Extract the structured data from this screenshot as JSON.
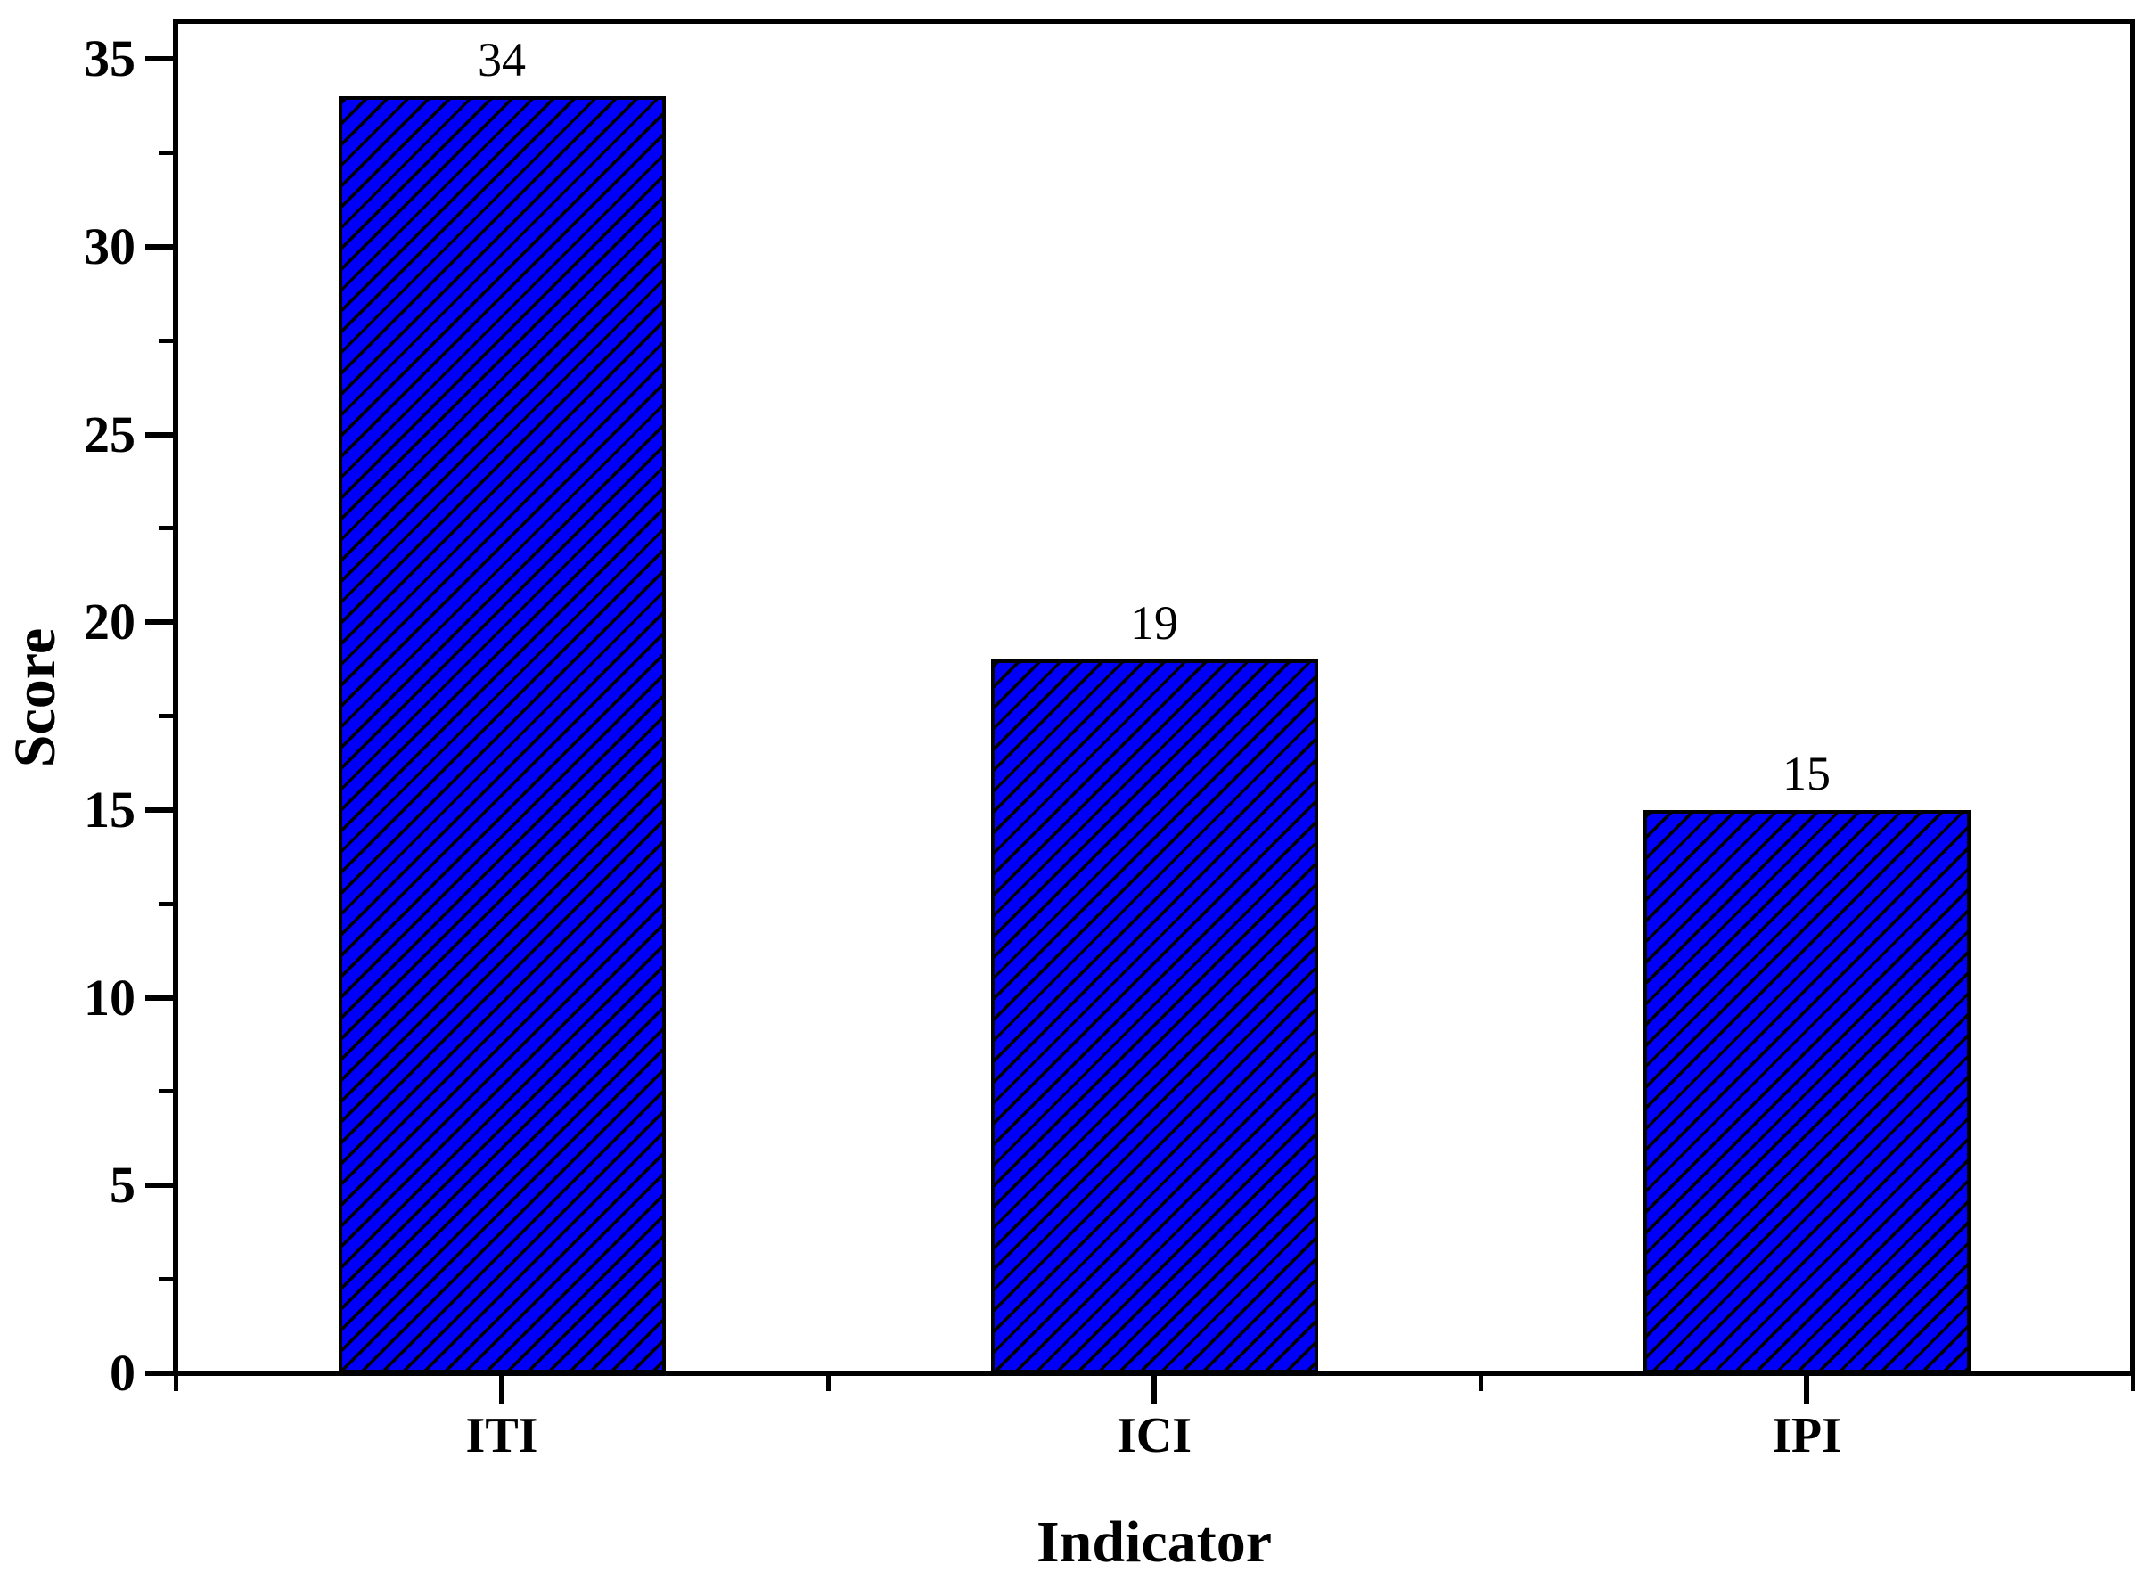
{
  "chart_data": {
    "type": "bar",
    "title": "",
    "categories": [
      "ITI",
      "ICI",
      "IPI"
    ],
    "values": [
      34,
      19,
      15
    ],
    "bar_value_labels": [
      "34",
      "19",
      "15"
    ],
    "xlabel": "Indicator",
    "ylabel": "Score",
    "ylim": [
      0,
      36
    ],
    "yticks": [
      0,
      5,
      10,
      15,
      20,
      25,
      30,
      35
    ],
    "ytick_labels": [
      "0",
      "5",
      "10",
      "15",
      "20",
      "25",
      "30",
      "35"
    ],
    "minor_tick_step": 2.5,
    "grid": false,
    "legend": null,
    "bar_color": "#0000FA",
    "hatch_style": "forward-diagonal",
    "hatch_color": "#000000",
    "axis_color": "#000000",
    "background_color": "#ffffff"
  }
}
